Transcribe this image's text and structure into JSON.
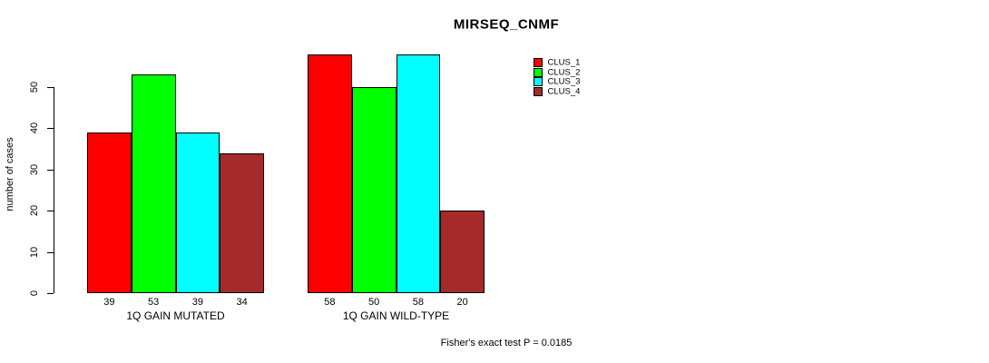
{
  "chart_data": {
    "type": "bar",
    "title": "MIRSEQ_CNMF",
    "ylabel": "number of cases",
    "xlabel": "",
    "ylim": [
      0,
      58
    ],
    "yticks": [
      0,
      10,
      20,
      30,
      40,
      50
    ],
    "grid": false,
    "legend_position": "right",
    "categories": [
      "1Q GAIN MUTATED",
      "1Q GAIN WILD-TYPE"
    ],
    "series": [
      {
        "name": "CLUS_1",
        "color": "#ff0000",
        "values": [
          39,
          58
        ]
      },
      {
        "name": "CLUS_2",
        "color": "#00ff00",
        "values": [
          53,
          50
        ]
      },
      {
        "name": "CLUS_3",
        "color": "#00ffff",
        "values": [
          39,
          58
        ]
      },
      {
        "name": "CLUS_4",
        "color": "#a52a2a",
        "values": [
          34,
          20
        ]
      }
    ],
    "bar_value_labels": [
      [
        "39",
        "53",
        "39",
        "34"
      ],
      [
        "58",
        "50",
        "58",
        "20"
      ]
    ],
    "annotation": "Fisher's exact test P = 0.0185"
  },
  "colors": {
    "background": "#ffffff",
    "axis": "#000000",
    "bar_border": "#000000",
    "text": "#000000"
  }
}
